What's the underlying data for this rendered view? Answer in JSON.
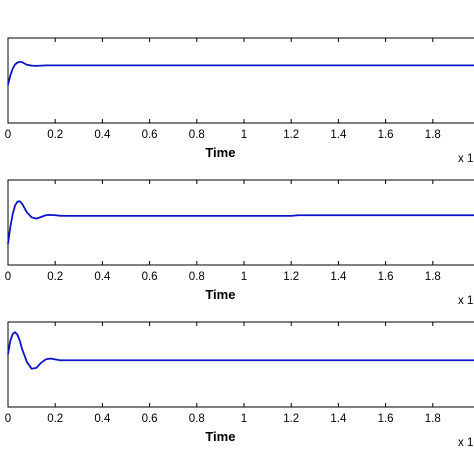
{
  "chart_data": [
    {
      "type": "line",
      "title": "",
      "xlabel": "Time",
      "x_exponent_label": "x 1",
      "ylabel": "",
      "xlim": [
        0,
        2.0
      ],
      "ylim": [
        0,
        1.0
      ],
      "x_ticks": [
        0,
        0.2,
        0.4,
        0.6,
        0.8,
        1,
        1.2,
        1.4,
        1.6,
        1.8
      ],
      "x_tick_labels": [
        "0",
        "0.2",
        "0.4",
        "0.6",
        "0.8",
        "1",
        "1.2",
        "1.4",
        "1.6",
        "1.8"
      ],
      "grid": false,
      "line_color": "#0a14c8",
      "series": [
        {
          "x": [
            0,
            0.01,
            0.02,
            0.03,
            0.04,
            0.05,
            0.06,
            0.07,
            0.08,
            0.1,
            0.12,
            0.14,
            0.16,
            0.18,
            0.2,
            0.3,
            0.6,
            1.0,
            1.4,
            2.0
          ],
          "y": [
            0.45,
            0.56,
            0.64,
            0.69,
            0.71,
            0.72,
            0.715,
            0.7,
            0.685,
            0.675,
            0.672,
            0.675,
            0.678,
            0.678,
            0.678,
            0.678,
            0.678,
            0.678,
            0.678,
            0.678
          ]
        }
      ]
    },
    {
      "type": "line",
      "title": "",
      "xlabel": "Time",
      "x_exponent_label": "x 1",
      "ylabel": "",
      "xlim": [
        0,
        2.0
      ],
      "ylim": [
        0,
        1.0
      ],
      "x_ticks": [
        0,
        0.2,
        0.4,
        0.6,
        0.8,
        1,
        1.2,
        1.4,
        1.6,
        1.8
      ],
      "x_tick_labels": [
        "0",
        "0.2",
        "0.4",
        "0.6",
        "0.8",
        "1",
        "1.2",
        "1.4",
        "1.6",
        "1.8"
      ],
      "grid": false,
      "line_color": "#0a14c8",
      "series": [
        {
          "x": [
            0,
            0.01,
            0.02,
            0.03,
            0.04,
            0.05,
            0.06,
            0.08,
            0.1,
            0.12,
            0.14,
            0.16,
            0.18,
            0.2,
            0.22,
            0.25,
            0.3,
            0.6,
            1.0,
            1.2,
            1.23,
            1.5,
            2.0
          ],
          "y": [
            0.25,
            0.45,
            0.6,
            0.7,
            0.745,
            0.75,
            0.72,
            0.62,
            0.56,
            0.545,
            0.565,
            0.585,
            0.59,
            0.585,
            0.58,
            0.578,
            0.578,
            0.578,
            0.578,
            0.578,
            0.585,
            0.585,
            0.585
          ]
        }
      ]
    },
    {
      "type": "line",
      "title": "",
      "xlabel": "Time",
      "x_exponent_label": "x 1",
      "ylabel": "",
      "xlim": [
        0,
        2.0
      ],
      "ylim": [
        0,
        1.0
      ],
      "x_ticks": [
        0,
        0.2,
        0.4,
        0.6,
        0.8,
        1,
        1.2,
        1.4,
        1.6,
        1.8
      ],
      "x_tick_labels": [
        "0",
        "0.2",
        "0.4",
        "0.6",
        "0.8",
        "1",
        "1.2",
        "1.4",
        "1.6",
        "1.8"
      ],
      "grid": false,
      "line_color": "#0a14c8",
      "series": [
        {
          "x": [
            0,
            0.01,
            0.02,
            0.03,
            0.04,
            0.05,
            0.06,
            0.08,
            0.1,
            0.12,
            0.14,
            0.16,
            0.18,
            0.2,
            0.22,
            0.25,
            0.3,
            0.5,
            1.0,
            1.5,
            2.0
          ],
          "y": [
            0.62,
            0.78,
            0.86,
            0.88,
            0.85,
            0.78,
            0.68,
            0.53,
            0.45,
            0.46,
            0.52,
            0.56,
            0.57,
            0.56,
            0.55,
            0.55,
            0.55,
            0.55,
            0.55,
            0.55,
            0.55
          ]
        }
      ]
    }
  ]
}
